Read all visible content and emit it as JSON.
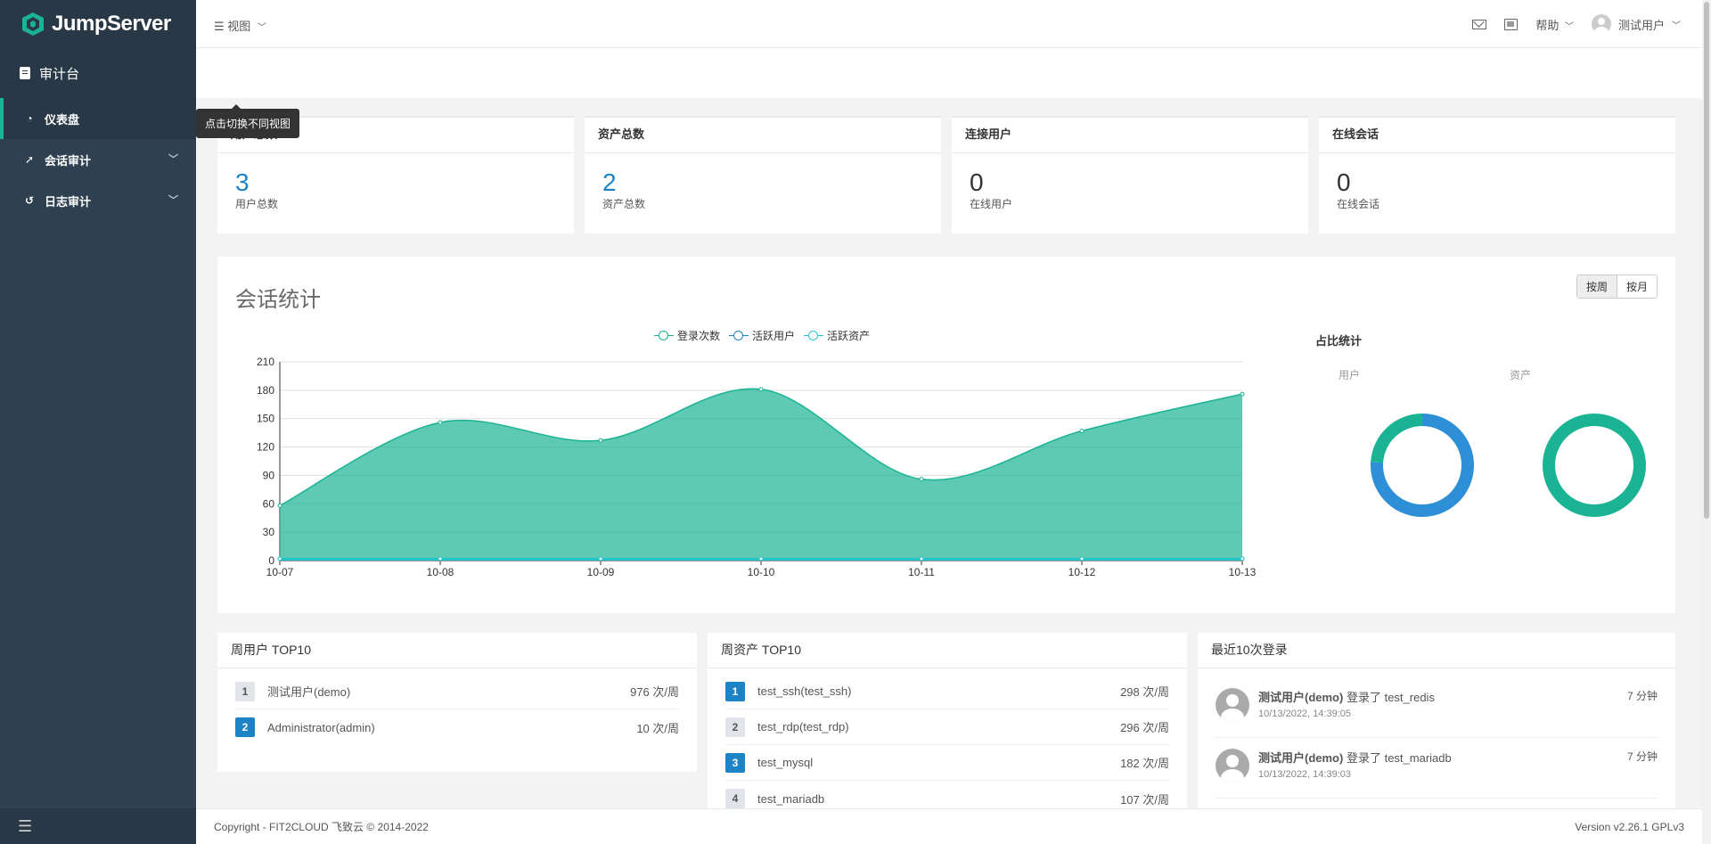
{
  "app": {
    "name": "JumpServer"
  },
  "sidebar": {
    "section": "审计台",
    "items": [
      {
        "label": "仪表盘",
        "icon": "dashboard-icon",
        "active": true
      },
      {
        "label": "会话审计",
        "icon": "rocket-icon",
        "expandable": true
      },
      {
        "label": "日志审计",
        "icon": "history-icon",
        "expandable": true
      }
    ]
  },
  "topbar": {
    "view_label": "视图",
    "tooltip": "点击切换不同视图",
    "help_label": "帮助",
    "user_name": "测试用户"
  },
  "stats": [
    {
      "title": "用户总数",
      "value": "3",
      "sub": "用户总数"
    },
    {
      "title": "资产总数",
      "value": "2",
      "sub": "资产总数"
    },
    {
      "title": "连接用户",
      "value": "0",
      "sub": "在线用户"
    },
    {
      "title": "在线会话",
      "value": "0",
      "sub": "在线会话"
    }
  ],
  "session_panel": {
    "title": "会话统计",
    "toggle": [
      "按周",
      "按月"
    ],
    "pie_title": "占比统计",
    "pie_labels": [
      "用户",
      "资产"
    ]
  },
  "chart_data": [
    {
      "type": "area",
      "categories": [
        "10-07",
        "10-08",
        "10-09",
        "10-10",
        "10-11",
        "10-12",
        "10-13"
      ],
      "series": [
        {
          "name": "登录次数",
          "values": [
            58,
            146,
            127,
            181,
            86,
            137,
            176
          ],
          "color": "#1ab394"
        },
        {
          "name": "活跃用户",
          "values": [
            2,
            2,
            2,
            2,
            2,
            2,
            2
          ],
          "color": "#1c84c6"
        },
        {
          "name": "活跃资产",
          "values": [
            2,
            2,
            2,
            2,
            2,
            2,
            2
          ],
          "color": "#23c6c8"
        }
      ],
      "yticks": [
        0,
        30,
        60,
        90,
        120,
        150,
        180,
        210
      ],
      "ylim": [
        0,
        210
      ],
      "legend": "top-center",
      "grid": true
    },
    {
      "type": "pie",
      "title": "用户",
      "slices": [
        {
          "value": 0.76,
          "color": "#2d8fd5"
        },
        {
          "value": 0.24,
          "color": "#1ab394"
        }
      ]
    },
    {
      "type": "pie",
      "title": "资产",
      "slices": [
        {
          "value": 1.0,
          "color": "#1ab394"
        }
      ]
    }
  ],
  "top_users": {
    "title": "周用户 TOP10",
    "rows": [
      {
        "rank": "1",
        "name": "测试用户(demo)",
        "count": "976 次/周"
      },
      {
        "rank": "2",
        "name": "Administrator(admin)",
        "count": "10 次/周"
      }
    ]
  },
  "top_assets": {
    "title": "周资产 TOP10",
    "rows": [
      {
        "rank": "1",
        "name": "test_ssh(test_ssh)",
        "count": "298 次/周"
      },
      {
        "rank": "2",
        "name": "test_rdp(test_rdp)",
        "count": "296 次/周"
      },
      {
        "rank": "3",
        "name": "test_mysql",
        "count": "182 次/周"
      },
      {
        "rank": "4",
        "name": "test_mariadb",
        "count": "107 次/周"
      }
    ]
  },
  "recent_logins": {
    "title": "最近10次登录",
    "rows": [
      {
        "user": "测试用户(demo)",
        "action": " 登录了 ",
        "target": "test_redis",
        "time": "10/13/2022, 14:39:05",
        "ago": "7 分钟"
      },
      {
        "user": "测试用户(demo)",
        "action": " 登录了 ",
        "target": "test_mariadb",
        "time": "10/13/2022, 14:39:03",
        "ago": "7 分钟"
      }
    ]
  },
  "footer": {
    "copyright": "Copyright - FIT2CLOUD 飞致云 © 2014-2022",
    "version": "Version v2.26.1 GPLv3"
  }
}
